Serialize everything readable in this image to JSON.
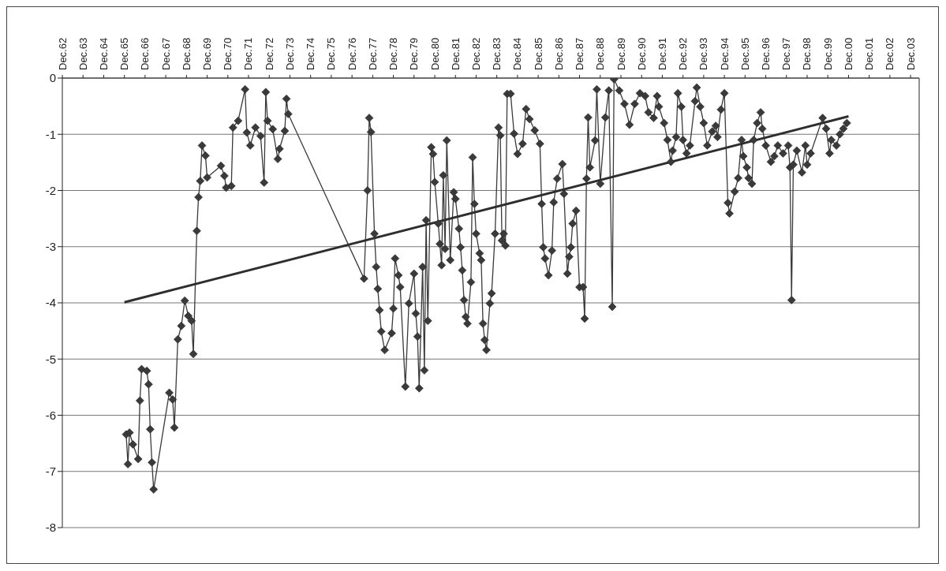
{
  "chart_data": {
    "type": "line",
    "marker": "diamond",
    "grid": "y",
    "ylim": [
      -8,
      0
    ],
    "yticks": [
      0,
      -1,
      -2,
      -3,
      -4,
      -5,
      -6,
      -7,
      -8
    ],
    "xlim": [
      "1962-12",
      "2004-05"
    ],
    "xticks": [
      {
        "value": "1962-12",
        "label": "Dec.62"
      },
      {
        "value": "1963-12",
        "label": "Dec.63"
      },
      {
        "value": "1964-12",
        "label": "Dec.64"
      },
      {
        "value": "1965-12",
        "label": "Dec.65"
      },
      {
        "value": "1966-12",
        "label": "Dec.66"
      },
      {
        "value": "1967-12",
        "label": "Dec.67"
      },
      {
        "value": "1968-12",
        "label": "Dec.68"
      },
      {
        "value": "1969-12",
        "label": "Dec.69"
      },
      {
        "value": "1970-12",
        "label": "Dec.70"
      },
      {
        "value": "1971-12",
        "label": "Dec.71"
      },
      {
        "value": "1972-12",
        "label": "Dec.72"
      },
      {
        "value": "1973-12",
        "label": "Dec.73"
      },
      {
        "value": "1974-12",
        "label": "Dec.74"
      },
      {
        "value": "1975-12",
        "label": "Dec.75"
      },
      {
        "value": "1976-12",
        "label": "Dec.76"
      },
      {
        "value": "1977-12",
        "label": "Dec.77"
      },
      {
        "value": "1978-12",
        "label": "Dec.78"
      },
      {
        "value": "1979-12",
        "label": "Dec.79"
      },
      {
        "value": "1980-12",
        "label": "Dec.80"
      },
      {
        "value": "1981-12",
        "label": "Dec.81"
      },
      {
        "value": "1982-12",
        "label": "Dec.82"
      },
      {
        "value": "1983-12",
        "label": "Dec.83"
      },
      {
        "value": "1984-12",
        "label": "Dec.84"
      },
      {
        "value": "1985-12",
        "label": "Dec.85"
      },
      {
        "value": "1986-12",
        "label": "Dec.86"
      },
      {
        "value": "1987-12",
        "label": "Dec.87"
      },
      {
        "value": "1988-12",
        "label": "Dec.88"
      },
      {
        "value": "1989-12",
        "label": "Dec.89"
      },
      {
        "value": "1990-12",
        "label": "Dec.90"
      },
      {
        "value": "1991-12",
        "label": "Dec.91"
      },
      {
        "value": "1992-12",
        "label": "Dec.92"
      },
      {
        "value": "1993-12",
        "label": "Dec.93"
      },
      {
        "value": "1994-12",
        "label": "Dec.94"
      },
      {
        "value": "1995-12",
        "label": "Dec.95"
      },
      {
        "value": "1996-12",
        "label": "Dec.96"
      },
      {
        "value": "1997-12",
        "label": "Dec.97"
      },
      {
        "value": "1998-12",
        "label": "Dec.98"
      },
      {
        "value": "1999-12",
        "label": "Dec.99"
      },
      {
        "value": "2000-12",
        "label": "Dec.00"
      },
      {
        "value": "2001-12",
        "label": "Dec.01"
      },
      {
        "value": "2002-12",
        "label": "Dec.02"
      },
      {
        "value": "2003-12",
        "label": "Dec.03"
      }
    ],
    "series": [
      {
        "color": "#3a3a3a",
        "x": [
          "1966-01",
          "1966-02",
          "1966-03",
          "1966-05",
          "1966-08",
          "1966-09",
          "1966-10",
          "1967-01",
          "1967-02",
          "1967-03",
          "1967-04",
          "1967-05",
          "1968-02",
          "1968-04",
          "1968-05",
          "1968-07",
          "1968-09",
          "1968-11",
          "1969-01",
          "1969-03",
          "1969-04",
          "1969-06",
          "1969-07",
          "1969-08",
          "1969-09",
          "1969-11",
          "1969-12",
          "1970-08",
          "1970-10",
          "1970-11",
          "1971-02",
          "1971-03",
          "1971-06",
          "1971-10",
          "1971-11",
          "1972-01",
          "1972-04",
          "1972-07",
          "1972-09",
          "1972-10",
          "1972-11",
          "1973-02",
          "1973-05",
          "1973-06",
          "1973-09",
          "1973-10",
          "1973-11",
          "1977-07",
          "1977-09",
          "1977-10",
          "1977-11",
          "1978-01",
          "1978-02",
          "1978-03",
          "1978-04",
          "1978-05",
          "1978-07",
          "1978-11",
          "1978-12",
          "1979-01",
          "1979-03",
          "1979-04",
          "1979-07",
          "1979-09",
          "1979-12",
          "1980-01",
          "1980-02",
          "1980-03",
          "1980-05",
          "1980-06",
          "1980-07",
          "1980-08",
          "1980-10",
          "1980-11",
          "1980-12",
          "1981-02",
          "1981-03",
          "1981-04",
          "1981-05",
          "1981-06",
          "1981-07",
          "1981-09",
          "1981-11",
          "1981-12",
          "1982-02",
          "1982-03",
          "1982-04",
          "1982-05",
          "1982-06",
          "1982-07",
          "1982-09",
          "1982-10",
          "1982-11",
          "1982-12",
          "1983-02",
          "1983-03",
          "1983-04",
          "1983-05",
          "1983-06",
          "1983-08",
          "1983-09",
          "1983-11",
          "1984-01",
          "1984-02",
          "1984-03",
          "1984-04",
          "1984-05",
          "1984-06",
          "1984-08",
          "1984-10",
          "1984-12",
          "1985-03",
          "1985-05",
          "1985-07",
          "1985-10",
          "1986-01",
          "1986-02",
          "1986-03",
          "1986-04",
          "1986-06",
          "1986-08",
          "1986-09",
          "1986-11",
          "1987-02",
          "1987-03",
          "1987-05",
          "1987-06",
          "1987-07",
          "1987-08",
          "1987-10",
          "1987-12",
          "1988-02",
          "1988-03",
          "1988-04",
          "1988-05",
          "1988-06",
          "1988-09",
          "1988-10",
          "1988-12",
          "1989-03",
          "1989-05",
          "1989-07",
          "1989-08",
          "1989-11",
          "1990-02",
          "1990-05",
          "1990-08",
          "1990-11",
          "1991-02",
          "1991-04",
          "1991-07",
          "1991-09",
          "1991-10",
          "1992-01",
          "1992-03",
          "1992-05",
          "1992-06",
          "1992-08",
          "1992-09",
          "1992-11",
          "1992-12",
          "1993-02",
          "1993-04",
          "1993-07",
          "1993-08",
          "1993-10",
          "1993-12",
          "1994-02",
          "1994-05",
          "1994-07",
          "1994-08",
          "1994-10",
          "1994-12",
          "1995-02",
          "1995-03",
          "1995-06",
          "1995-08",
          "1995-10",
          "1995-11",
          "1996-01",
          "1996-02",
          "1996-04",
          "1996-05",
          "1996-07",
          "1996-09",
          "1996-10",
          "1996-12",
          "1997-03",
          "1997-05",
          "1997-07",
          "1997-10",
          "1998-01",
          "1998-02",
          "1998-03",
          "1998-04",
          "1998-06",
          "1998-09",
          "1998-11",
          "1998-12",
          "1999-02",
          "1999-09",
          "1999-11",
          "2000-01",
          "2000-02",
          "2000-05",
          "2000-07",
          "2000-09",
          "2000-11"
        ],
        "values": [
          -6.34,
          -6.87,
          -6.31,
          -6.52,
          -6.78,
          -5.74,
          -5.18,
          -5.21,
          -5.45,
          -6.25,
          -6.84,
          -7.32,
          -5.6,
          -5.72,
          -6.22,
          -4.65,
          -4.41,
          -3.96,
          -4.23,
          -4.32,
          -4.91,
          -2.72,
          -2.12,
          -1.83,
          -1.2,
          -1.38,
          -1.77,
          -1.56,
          -1.74,
          -1.95,
          -1.92,
          -0.88,
          -0.76,
          -0.2,
          -0.97,
          -1.2,
          -0.88,
          -1.03,
          -1.86,
          -0.25,
          -0.76,
          -0.91,
          -1.44,
          -1.26,
          -0.94,
          -0.37,
          -0.64,
          -3.57,
          -2.0,
          -0.71,
          -0.96,
          -2.77,
          -3.36,
          -3.75,
          -4.13,
          -4.51,
          -4.84,
          -4.54,
          -4.1,
          -3.21,
          -3.51,
          -3.72,
          -5.49,
          -4.01,
          -3.48,
          -4.19,
          -4.6,
          -5.52,
          -3.36,
          -5.2,
          -2.53,
          -4.32,
          -1.23,
          -1.35,
          -1.85,
          -2.59,
          -2.95,
          -3.33,
          -1.73,
          -3.04,
          -1.11,
          -3.24,
          -2.03,
          -2.15,
          -2.68,
          -3.01,
          -3.42,
          -3.95,
          -4.25,
          -4.37,
          -3.63,
          -1.41,
          -2.24,
          -2.77,
          -3.12,
          -3.24,
          -4.37,
          -4.66,
          -4.84,
          -4.01,
          -3.83,
          -2.77,
          -0.88,
          -1.02,
          -2.89,
          -2.77,
          -2.98,
          -0.28,
          -0.28,
          -0.99,
          -1.35,
          -1.17,
          -0.55,
          -0.73,
          -0.93,
          -1.17,
          -2.24,
          -3.01,
          -3.21,
          -3.51,
          -3.07,
          -2.21,
          -1.79,
          -1.53,
          -2.06,
          -3.48,
          -3.18,
          -3.01,
          -2.59,
          -2.36,
          -3.72,
          -3.72,
          -4.28,
          -1.79,
          -0.7,
          -1.59,
          -1.11,
          -0.2,
          -1.88,
          -0.7,
          -0.22,
          -4.07,
          -0.02,
          -0.22,
          -0.46,
          -0.83,
          -0.46,
          -0.27,
          -0.32,
          -0.61,
          -0.71,
          -0.32,
          -0.51,
          -0.8,
          -1.1,
          -1.49,
          -1.29,
          -1.05,
          -0.27,
          -0.51,
          -1.1,
          -1.34,
          -1.2,
          -0.41,
          -0.17,
          -0.51,
          -0.8,
          -1.2,
          -0.95,
          -0.85,
          -1.05,
          -0.56,
          -0.27,
          -2.22,
          -2.41,
          -2.02,
          -1.78,
          -1.1,
          -1.39,
          -1.59,
          -1.78,
          -1.88,
          -1.1,
          -0.8,
          -0.61,
          -0.9,
          -1.2,
          -1.49,
          -1.39,
          -1.2,
          -1.34,
          -1.2,
          -1.59,
          -3.95,
          -1.54,
          -1.29,
          -1.68,
          -1.2,
          -1.54,
          -1.34,
          -0.71,
          -0.9,
          -1.34,
          -1.1,
          -1.2,
          -1.0,
          -0.9,
          -0.8
        ]
      },
      {
        "type": "line",
        "color": "#2e2e2e",
        "marker": "none",
        "x": [
          "1965-12",
          "2000-12"
        ],
        "values": [
          -3.99,
          -0.68
        ]
      }
    ]
  }
}
